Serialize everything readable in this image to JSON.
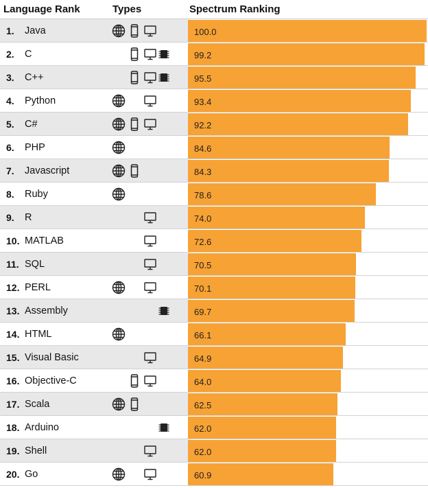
{
  "header": {
    "language_rank": "Language Rank",
    "types": "Types",
    "spectrum_ranking": "Spectrum Ranking"
  },
  "colors": {
    "bar": "#f7a234",
    "row_shade": "#e8e8e8",
    "icon": "#222222"
  },
  "icons": {
    "web": "globe-icon",
    "mobile": "mobile-phone-icon",
    "enterprise": "desktop-monitor-icon",
    "embedded": "chip-icon"
  },
  "chart_data": {
    "type": "bar",
    "orientation": "horizontal",
    "xlim": [
      0,
      100
    ],
    "categories": [
      "Java",
      "C",
      "C++",
      "Python",
      "C#",
      "PHP",
      "Javascript",
      "Ruby",
      "R",
      "MATLAB",
      "SQL",
      "PERL",
      "Assembly",
      "HTML",
      "Visual Basic",
      "Objective-C",
      "Scala",
      "Arduino",
      "Shell",
      "Go"
    ],
    "values": [
      100.0,
      99.2,
      95.5,
      93.4,
      92.2,
      84.6,
      84.3,
      78.6,
      74.0,
      72.6,
      70.5,
      70.1,
      69.7,
      66.1,
      64.9,
      64.0,
      62.5,
      62.0,
      62.0,
      60.9
    ],
    "rows": [
      {
        "rank": "1.",
        "name": "Java",
        "value": 100.0,
        "label": "100.0",
        "types": [
          "web",
          "mobile",
          "enterprise"
        ]
      },
      {
        "rank": "2.",
        "name": "C",
        "value": 99.2,
        "label": "99.2",
        "types": [
          "mobile",
          "enterprise",
          "embedded"
        ]
      },
      {
        "rank": "3.",
        "name": "C++",
        "value": 95.5,
        "label": "95.5",
        "types": [
          "mobile",
          "enterprise",
          "embedded"
        ]
      },
      {
        "rank": "4.",
        "name": "Python",
        "value": 93.4,
        "label": "93.4",
        "types": [
          "web",
          "enterprise"
        ]
      },
      {
        "rank": "5.",
        "name": "C#",
        "value": 92.2,
        "label": "92.2",
        "types": [
          "web",
          "mobile",
          "enterprise"
        ]
      },
      {
        "rank": "6.",
        "name": "PHP",
        "value": 84.6,
        "label": "84.6",
        "types": [
          "web"
        ]
      },
      {
        "rank": "7.",
        "name": "Javascript",
        "value": 84.3,
        "label": "84.3",
        "types": [
          "web",
          "mobile"
        ]
      },
      {
        "rank": "8.",
        "name": "Ruby",
        "value": 78.6,
        "label": "78.6",
        "types": [
          "web"
        ]
      },
      {
        "rank": "9.",
        "name": "R",
        "value": 74.0,
        "label": "74.0",
        "types": [
          "enterprise"
        ]
      },
      {
        "rank": "10.",
        "name": "MATLAB",
        "value": 72.6,
        "label": "72.6",
        "types": [
          "enterprise"
        ]
      },
      {
        "rank": "11.",
        "name": "SQL",
        "value": 70.5,
        "label": "70.5",
        "types": [
          "enterprise"
        ]
      },
      {
        "rank": "12.",
        "name": "PERL",
        "value": 70.1,
        "label": "70.1",
        "types": [
          "web",
          "enterprise"
        ]
      },
      {
        "rank": "13.",
        "name": "Assembly",
        "value": 69.7,
        "label": "69.7",
        "types": [
          "embedded"
        ]
      },
      {
        "rank": "14.",
        "name": "HTML",
        "value": 66.1,
        "label": "66.1",
        "types": [
          "web"
        ]
      },
      {
        "rank": "15.",
        "name": "Visual Basic",
        "value": 64.9,
        "label": "64.9",
        "types": [
          "enterprise"
        ]
      },
      {
        "rank": "16.",
        "name": "Objective-C",
        "value": 64.0,
        "label": "64.0",
        "types": [
          "mobile",
          "enterprise"
        ]
      },
      {
        "rank": "17.",
        "name": "Scala",
        "value": 62.5,
        "label": "62.5",
        "types": [
          "web",
          "mobile"
        ]
      },
      {
        "rank": "18.",
        "name": "Arduino",
        "value": 62.0,
        "label": "62.0",
        "types": [
          "embedded"
        ]
      },
      {
        "rank": "19.",
        "name": "Shell",
        "value": 62.0,
        "label": "62.0",
        "types": [
          "enterprise"
        ]
      },
      {
        "rank": "20.",
        "name": "Go",
        "value": 60.9,
        "label": "60.9",
        "types": [
          "web",
          "enterprise"
        ]
      }
    ]
  }
}
